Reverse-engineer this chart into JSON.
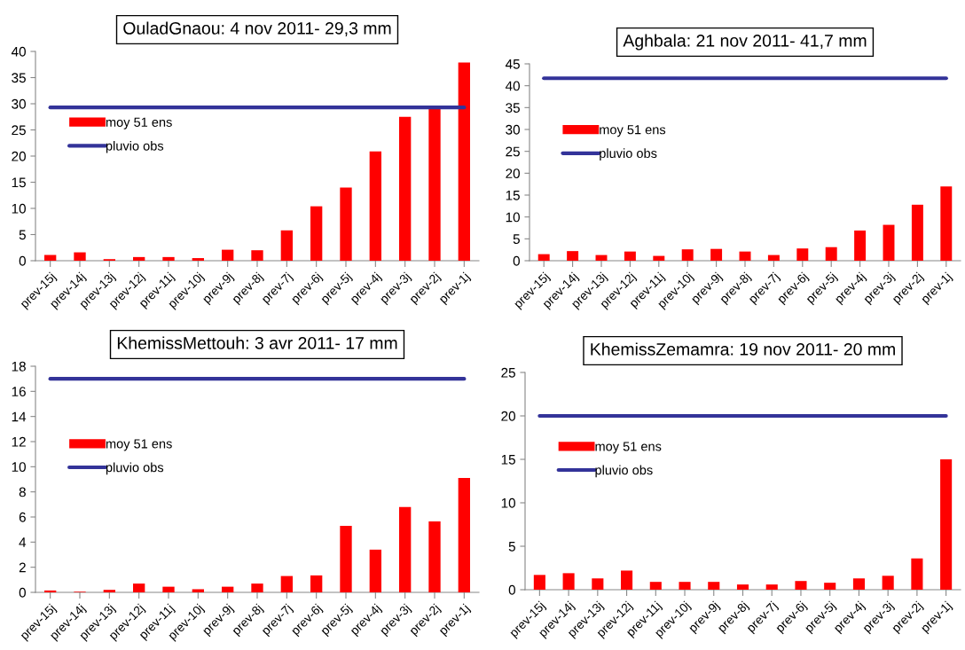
{
  "chart_data": [
    {
      "type": "bar",
      "title": "OuladGnaou: 4 nov 2011- 29,3 mm",
      "categories": [
        "prev-15j",
        "prev-14j",
        "prev-13j",
        "prev-12j",
        "prev-11j",
        "prev-10j",
        "prev-9j",
        "prev-8j",
        "prev-7j",
        "prev-6j",
        "prev-5j",
        "prev-4j",
        "prev-3j",
        "prev-2j",
        "prev-1j"
      ],
      "ylim": [
        0,
        40
      ],
      "yticks": [
        0,
        5,
        10,
        15,
        20,
        25,
        30,
        35,
        40
      ],
      "legend": "left",
      "grid": false,
      "series": [
        {
          "name": "moy 51 ens",
          "color": "#ff0000",
          "values": [
            1.1,
            1.6,
            0.3,
            0.7,
            0.7,
            0.5,
            2.1,
            2.0,
            5.8,
            10.4,
            14.0,
            20.9,
            27.5,
            29.1,
            37.9
          ]
        },
        {
          "name": "pluvio obs",
          "type": "line",
          "color": "#333399",
          "values": [
            29.3,
            29.3,
            29.3,
            29.3,
            29.3,
            29.3,
            29.3,
            29.3,
            29.3,
            29.3,
            29.3,
            29.3,
            29.3,
            29.3,
            29.3
          ]
        }
      ]
    },
    {
      "type": "bar",
      "title": "Aghbala: 21 nov 2011- 41,7 mm",
      "categories": [
        "prev-15j",
        "prev-14j",
        "prev-13j",
        "prev-12j",
        "prev-11j",
        "prev-10j",
        "prev-9j",
        "prev-8j",
        "prev-7j",
        "prev-6j",
        "prev-5j",
        "prev-4j",
        "prev-3j",
        "prev-2j",
        "prev-1j"
      ],
      "ylim": [
        0,
        45
      ],
      "yticks": [
        0,
        5,
        10,
        15,
        20,
        25,
        30,
        35,
        40,
        45
      ],
      "legend": "left",
      "grid": false,
      "series": [
        {
          "name": "moy 51 ens",
          "color": "#ff0000",
          "values": [
            1.5,
            2.2,
            1.3,
            2.1,
            1.1,
            2.6,
            2.7,
            2.1,
            1.3,
            2.8,
            3.1,
            6.9,
            8.2,
            12.8,
            17.0
          ]
        },
        {
          "name": "pluvio obs",
          "type": "line",
          "color": "#333399",
          "values": [
            41.7,
            41.7,
            41.7,
            41.7,
            41.7,
            41.7,
            41.7,
            41.7,
            41.7,
            41.7,
            41.7,
            41.7,
            41.7,
            41.7,
            41.7
          ]
        }
      ]
    },
    {
      "type": "bar",
      "title": "KhemissMettouh: 3 avr 2011- 17 mm",
      "categories": [
        "prev-15j",
        "prev-14j",
        "prev-13j",
        "prev-12j",
        "prev-11j",
        "prev-10j",
        "prev-9j",
        "prev-8j",
        "prev-7j",
        "prev-6j",
        "prev-5j",
        "prev-4j",
        "prev-3j",
        "prev-2j",
        "prev-1j"
      ],
      "ylim": [
        0,
        18
      ],
      "yticks": [
        0,
        2,
        4,
        6,
        8,
        10,
        12,
        14,
        16,
        18
      ],
      "legend": "left",
      "grid": false,
      "series": [
        {
          "name": "moy 51 ens",
          "color": "#ff0000",
          "values": [
            0.15,
            0.05,
            0.2,
            0.7,
            0.45,
            0.25,
            0.45,
            0.7,
            1.3,
            1.35,
            5.3,
            3.4,
            6.8,
            5.65,
            9.1
          ]
        },
        {
          "name": "pluvio obs",
          "type": "line",
          "color": "#333399",
          "values": [
            17,
            17,
            17,
            17,
            17,
            17,
            17,
            17,
            17,
            17,
            17,
            17,
            17,
            17,
            17
          ]
        }
      ]
    },
    {
      "type": "bar",
      "title": "KhemissZemamra: 19 nov 2011- 20 mm",
      "categories": [
        "prev-15j",
        "prev-14j",
        "prev-13j",
        "prev-12j",
        "prev-11j",
        "prev-10j",
        "prev-9j",
        "prev-8j",
        "prev-7j",
        "prev-6j",
        "prev-5j",
        "prev-4j",
        "prev-3j",
        "prev-2j",
        "prev-1j"
      ],
      "ylim": [
        0,
        25
      ],
      "yticks": [
        0,
        5,
        10,
        15,
        20,
        25
      ],
      "legend": "left",
      "grid": false,
      "series": [
        {
          "name": "moy 51 ens",
          "color": "#ff0000",
          "values": [
            1.7,
            1.9,
            1.3,
            2.2,
            0.9,
            0.9,
            0.9,
            0.6,
            0.6,
            1.0,
            0.8,
            1.3,
            1.6,
            3.6,
            15.0
          ]
        },
        {
          "name": "pluvio obs",
          "type": "line",
          "color": "#333399",
          "values": [
            20,
            20,
            20,
            20,
            20,
            20,
            20,
            20,
            20,
            20,
            20,
            20,
            20,
            20,
            20
          ]
        }
      ]
    }
  ]
}
